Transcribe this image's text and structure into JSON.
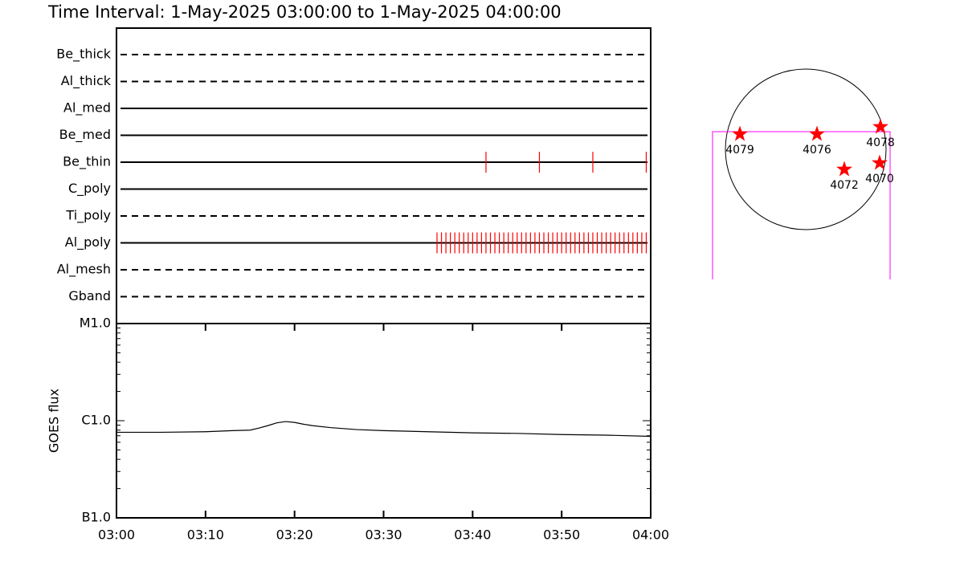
{
  "title": "Time Interval:  1-May-2025 03:00:00 to  1-May-2025 04:00:00",
  "chart_data": [
    {
      "type": "timeline",
      "categories": [
        "Be_thick",
        "Al_thick",
        "Al_med",
        "Be_med",
        "Be_thin",
        "C_poly",
        "Ti_poly",
        "Al_poly",
        "Al_mesh",
        "Gband"
      ],
      "line_styles": [
        "dashed",
        "dashed",
        "solid",
        "solid",
        "solid",
        "solid",
        "dashed",
        "solid",
        "dashed",
        "dashed"
      ],
      "color": "#ff0000",
      "xlim": [
        0,
        60
      ],
      "events": [
        [],
        [],
        [],
        [],
        [
          41.5,
          47.5,
          53.5,
          59.5
        ],
        [],
        [],
        [
          36,
          36.5,
          37,
          37.5,
          38,
          38.5,
          39,
          39.5,
          40,
          40.5,
          41,
          41.5,
          42,
          42.5,
          43,
          43.5,
          44,
          44.5,
          45,
          45.5,
          46,
          46.5,
          47,
          47.5,
          48,
          48.5,
          49,
          49.5,
          50,
          50.5,
          51,
          51.5,
          52,
          52.5,
          53,
          53.5,
          54,
          54.5,
          55,
          55.5,
          56,
          56.5,
          57,
          57.5,
          58,
          58.5,
          59,
          59.5
        ],
        [],
        []
      ]
    },
    {
      "type": "line",
      "y_label": "GOES flux",
      "log_scale": true,
      "color": "#000000",
      "xlim": [
        0,
        60
      ],
      "xticks": [
        {
          "value": 0,
          "label": "03:00"
        },
        {
          "value": 10,
          "label": "03:10"
        },
        {
          "value": 20,
          "label": "03:20"
        },
        {
          "value": 30,
          "label": "03:30"
        },
        {
          "value": 40,
          "label": "03:40"
        },
        {
          "value": 50,
          "label": "03:50"
        },
        {
          "value": 60,
          "label": "04:00"
        }
      ],
      "ylim": [
        1e-07,
        1e-05
      ],
      "yticks": [
        {
          "value": 1e-07,
          "label": "B1.0"
        },
        {
          "value": 1e-06,
          "label": "C1.0"
        },
        {
          "value": 1e-05,
          "label": "M1.0"
        }
      ],
      "yminorticks": [
        2e-07,
        3e-07,
        4e-07,
        5e-07,
        6e-07,
        7e-07,
        8e-07,
        9e-07,
        2e-06,
        3e-06,
        4e-06,
        5e-06,
        6e-06,
        7e-06,
        8e-06,
        9e-06
      ],
      "x": [
        0,
        5,
        10,
        13,
        15,
        16,
        17,
        18,
        19,
        20,
        21,
        22,
        24,
        27,
        30,
        35,
        40,
        45,
        50,
        55,
        60
      ],
      "values": [
        7.6e-07,
        7.6e-07,
        7.7e-07,
        7.9e-07,
        8e-07,
        8.4e-07,
        8.9e-07,
        9.5e-07,
        9.8e-07,
        9.6e-07,
        9.2e-07,
        8.9e-07,
        8.5e-07,
        8.1e-07,
        7.9e-07,
        7.7e-07,
        7.5e-07,
        7.4e-07,
        7.2e-07,
        7.1e-07,
        6.9e-07
      ]
    },
    {
      "type": "sunmap",
      "disk_radius": 960,
      "color": "#ff0000",
      "fov_color": "#ff00ff",
      "fov": {
        "x": [
          -1114,
          1008
        ],
        "y": [
          -1555,
          211
        ]
      },
      "labels": [
        "4079",
        "4076",
        "4078",
        "4072",
        "4070"
      ],
      "x": [
        -787,
        134,
        893,
        461,
        883
      ],
      "y": [
        182,
        182,
        269,
        -240,
        -163
      ]
    }
  ]
}
